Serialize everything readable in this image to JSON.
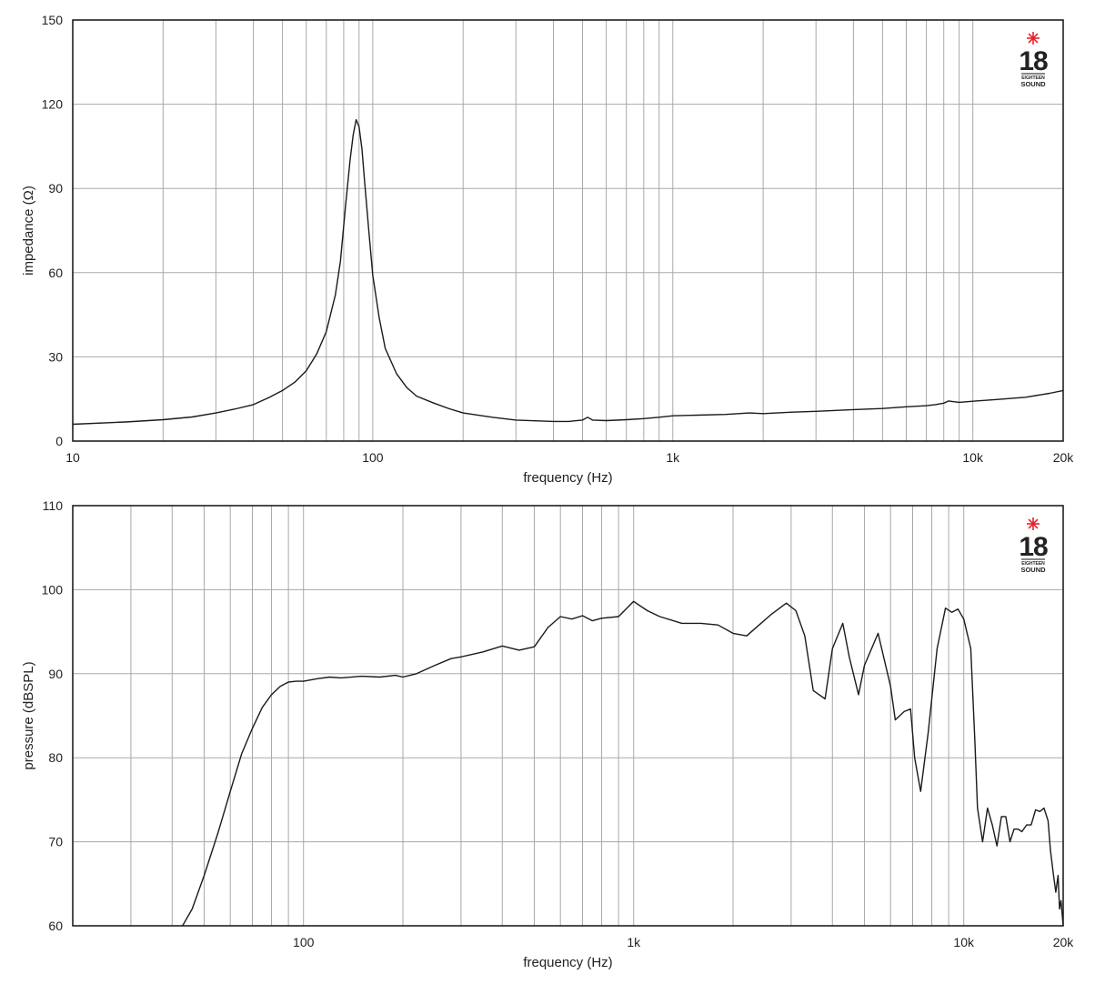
{
  "chart_data": [
    {
      "type": "line",
      "xlabel": "frequency (Hz)",
      "ylabel": "impedance (Ω)",
      "xscale": "log",
      "xlim": [
        10,
        20000
      ],
      "ylim": [
        0,
        150
      ],
      "yticks": [
        0,
        30,
        60,
        90,
        120,
        150
      ],
      "xticks": [
        {
          "value": 10,
          "label": "10"
        },
        {
          "value": 100,
          "label": "100"
        },
        {
          "value": 1000,
          "label": "1k"
        },
        {
          "value": 10000,
          "label": "10k"
        },
        {
          "value": 20000,
          "label": "20k"
        }
      ],
      "grid": true,
      "logo": {
        "number": "18",
        "text_top": "EIGHTEEN",
        "text_bottom": "SOUND",
        "accent": "#e8202a"
      },
      "series": [
        {
          "x": [
            10,
            15,
            20,
            25,
            30,
            35,
            40,
            45,
            50,
            55,
            60,
            65,
            70,
            75,
            78,
            81,
            84,
            86,
            88,
            90,
            92,
            94,
            97,
            100,
            105,
            110,
            120,
            130,
            140,
            160,
            180,
            200,
            250,
            300,
            400,
            450,
            500,
            520,
            540,
            600,
            700,
            800,
            900,
            1000,
            1500,
            1800,
            2000,
            2500,
            3000,
            4000,
            5000,
            6000,
            7000,
            7500,
            8000,
            8300,
            9000,
            10000,
            12000,
            15000,
            18000,
            20000
          ],
          "y": [
            6,
            6.8,
            7.6,
            8.6,
            10,
            11.5,
            13,
            15.5,
            18,
            21,
            25,
            31,
            39,
            52,
            64,
            83,
            100,
            109,
            114.5,
            112,
            104,
            92,
            75,
            59,
            44,
            33,
            24,
            19,
            16,
            13.5,
            11.5,
            10,
            8.5,
            7.5,
            7,
            7,
            7.5,
            8.5,
            7.5,
            7.3,
            7.6,
            8,
            8.5,
            9,
            9.5,
            10,
            9.8,
            10.3,
            10.6,
            11.2,
            11.6,
            12.2,
            12.6,
            13,
            13.5,
            14.3,
            13.8,
            14.2,
            14.8,
            15.6,
            17,
            18
          ]
        }
      ]
    },
    {
      "type": "line",
      "xlabel": "frequency (Hz)",
      "ylabel": "pressure (dBSPL)",
      "xscale": "log",
      "xlim": [
        20,
        20000
      ],
      "ylim": [
        60,
        110
      ],
      "yticks": [
        60,
        70,
        80,
        90,
        100,
        110
      ],
      "xticks": [
        {
          "value": 100,
          "label": "100"
        },
        {
          "value": 1000,
          "label": "1k"
        },
        {
          "value": 10000,
          "label": "10k"
        },
        {
          "value": 20000,
          "label": "20k"
        }
      ],
      "grid": true,
      "logo": {
        "number": "18",
        "text_top": "EIGHTEEN",
        "text_bottom": "SOUND",
        "accent": "#e8202a"
      },
      "series": [
        {
          "x": [
            43,
            46,
            50,
            55,
            60,
            65,
            70,
            75,
            80,
            85,
            90,
            95,
            100,
            110,
            120,
            130,
            150,
            170,
            190,
            200,
            220,
            250,
            280,
            300,
            350,
            400,
            450,
            500,
            550,
            600,
            650,
            700,
            750,
            800,
            900,
            1000,
            1100,
            1200,
            1400,
            1600,
            1800,
            2000,
            2200,
            2400,
            2600,
            2900,
            3100,
            3300,
            3500,
            3800,
            4000,
            4300,
            4500,
            4800,
            5000,
            5500,
            6000,
            6200,
            6600,
            6900,
            7100,
            7400,
            7800,
            8300,
            8800,
            9200,
            9600,
            10000,
            10500,
            10800,
            11000,
            11400,
            11800,
            12200,
            12600,
            13000,
            13400,
            13800,
            14200,
            14600,
            15000,
            15500,
            16000,
            16500,
            17000,
            17500,
            18000,
            18300,
            18700,
            19000,
            19300,
            19500,
            19700,
            19900,
            20000
          ],
          "y": [
            60,
            62,
            66,
            71,
            76,
            80.5,
            83.5,
            86,
            87.5,
            88.5,
            89,
            89.1,
            89.1,
            89.4,
            89.6,
            89.5,
            89.7,
            89.6,
            89.8,
            89.6,
            90,
            91,
            91.8,
            92,
            92.6,
            93.3,
            92.8,
            93.2,
            95.5,
            96.8,
            96.5,
            96.9,
            96.3,
            96.6,
            96.8,
            98.6,
            97.5,
            96.8,
            96,
            96,
            95.8,
            94.8,
            94.5,
            95.8,
            97,
            98.4,
            97.5,
            94.5,
            88,
            87,
            93,
            96,
            92,
            87.5,
            91,
            94.8,
            88.5,
            84.5,
            85.5,
            85.8,
            80,
            76,
            83,
            93,
            97.8,
            97.3,
            97.7,
            96.5,
            93,
            82,
            74,
            70,
            74,
            72,
            69.5,
            73,
            73,
            70,
            71.5,
            71.5,
            71.2,
            72,
            72,
            73.8,
            73.6,
            74,
            72.5,
            69,
            66,
            64,
            66,
            62,
            63,
            61,
            60
          ]
        }
      ]
    }
  ]
}
